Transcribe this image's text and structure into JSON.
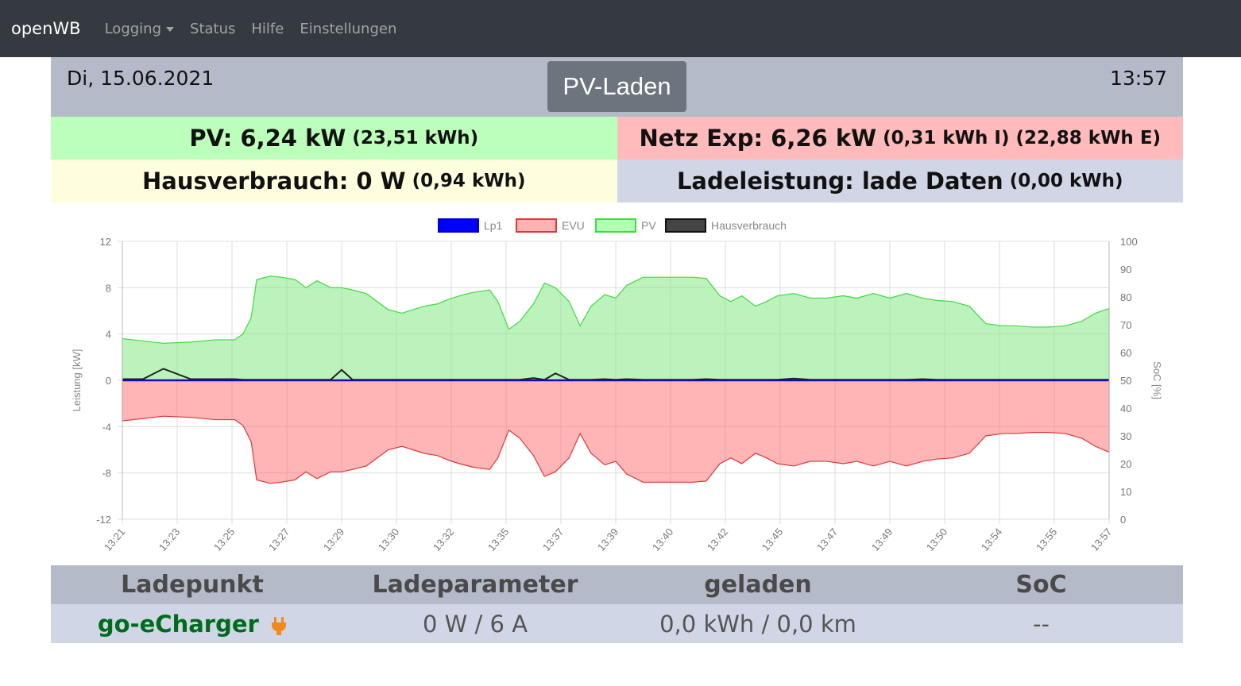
{
  "nav": {
    "brand": "openWB",
    "items": [
      "Logging",
      "Status",
      "Hilfe",
      "Einstellungen"
    ]
  },
  "header": {
    "date": "Di, 15.06.2021",
    "mode": "PV-Laden",
    "time": "13:57"
  },
  "summary": {
    "pv": {
      "label": "PV: 6,24 kW",
      "sub": "(23,51 kWh)",
      "color": "#bbffbb"
    },
    "netz": {
      "label": "Netz Exp: 6,26 kW",
      "sub": "(0,31 kWh I) (22,88 kWh E)",
      "color": "#ffbbbb"
    },
    "haus": {
      "label": "Hausverbrauch: 0 W",
      "sub": "(0,94 kWh)",
      "color": "#fefedf"
    },
    "lade": {
      "label": "Ladeleistung: lade Daten",
      "sub": "(0,00 kWh)",
      "color": "#d0d6e6"
    }
  },
  "chart_data": {
    "type": "area",
    "legend": [
      "Lp1",
      "EVU",
      "PV",
      "Hausverbrauch"
    ],
    "legend_position": "top",
    "ylabel": "Leistung [kW]",
    "y2label": "SoC [%]",
    "ylim": [
      -12,
      12
    ],
    "yticks": [
      12,
      8,
      4,
      0,
      -4,
      -8,
      -12
    ],
    "y2lim": [
      0,
      100
    ],
    "y2ticks": [
      100,
      90,
      80,
      70,
      60,
      50,
      40,
      30,
      20,
      10,
      0
    ],
    "xticks": [
      "13:21",
      "13:23",
      "13:25",
      "13:27",
      "13:29",
      "13:30",
      "13:32",
      "13:35",
      "13:37",
      "13:39",
      "13:40",
      "13:42",
      "13:45",
      "13:47",
      "13:49",
      "13:50",
      "13:54",
      "13:55",
      "13:57"
    ],
    "xlim_minutes": [
      0,
      36
    ],
    "t": [
      0,
      0.75,
      1.5,
      2.5,
      3.4,
      4.1,
      4.4,
      4.7,
      4.9,
      5.4,
      5.8,
      6.3,
      6.7,
      7.1,
      7.6,
      8.0,
      8.4,
      8.9,
      9.3,
      9.7,
      10.2,
      10.6,
      11.0,
      11.5,
      11.9,
      12.3,
      12.8,
      13.4,
      13.7,
      14.1,
      14.5,
      15.0,
      15.4,
      15.8,
      16.3,
      16.7,
      17.1,
      17.6,
      18.0,
      18.4,
      19.0,
      19.9,
      20.8,
      21.3,
      21.8,
      22.2,
      22.6,
      23.1,
      23.5,
      23.9,
      24.5,
      25.1,
      25.7,
      26.3,
      26.8,
      27.4,
      28.0,
      28.6,
      29.2,
      29.7,
      30.3,
      30.9,
      31.5,
      32.1,
      32.6,
      33.2,
      33.8,
      34.4,
      35.0,
      35.5,
      36
    ],
    "pv": [
      3.6,
      3.4,
      3.2,
      3.3,
      3.5,
      3.5,
      4.0,
      5.4,
      8.7,
      9.0,
      8.9,
      8.7,
      8.0,
      8.6,
      8.0,
      8.0,
      7.8,
      7.5,
      6.8,
      6.1,
      5.8,
      6.1,
      6.4,
      6.6,
      7.0,
      7.3,
      7.6,
      7.8,
      6.8,
      4.4,
      5.1,
      6.6,
      8.4,
      8.0,
      6.8,
      4.7,
      6.4,
      7.4,
      7.1,
      8.2,
      8.9,
      8.9,
      8.9,
      8.8,
      7.3,
      6.8,
      7.3,
      6.4,
      6.8,
      7.3,
      7.5,
      7.1,
      7.1,
      7.3,
      7.1,
      7.5,
      7.1,
      7.5,
      7.1,
      6.9,
      6.8,
      6.4,
      4.9,
      4.7,
      4.7,
      4.6,
      4.6,
      4.7,
      5.1,
      5.8,
      6.2
    ],
    "evu": [
      -3.5,
      -3.3,
      -3.1,
      -3.2,
      -3.4,
      -3.4,
      -3.9,
      -5.3,
      -8.6,
      -8.9,
      -8.8,
      -8.6,
      -7.9,
      -8.5,
      -7.9,
      -7.9,
      -7.7,
      -7.4,
      -6.7,
      -6.0,
      -5.7,
      -6.0,
      -6.3,
      -6.5,
      -6.9,
      -7.2,
      -7.5,
      -7.7,
      -6.7,
      -4.3,
      -5.0,
      -6.5,
      -8.3,
      -7.9,
      -6.7,
      -4.6,
      -6.3,
      -7.3,
      -7.0,
      -8.1,
      -8.8,
      -8.8,
      -8.8,
      -8.7,
      -7.2,
      -6.7,
      -7.2,
      -6.3,
      -6.7,
      -7.2,
      -7.4,
      -7.0,
      -7.0,
      -7.2,
      -7.0,
      -7.4,
      -7.0,
      -7.4,
      -7.0,
      -6.8,
      -6.7,
      -6.3,
      -4.8,
      -4.6,
      -4.6,
      -4.5,
      -4.5,
      -4.6,
      -5.0,
      -5.7,
      -6.2
    ],
    "haus": [
      0.1,
      0.1,
      1.0,
      0.1,
      0.1,
      0.1,
      0.05,
      0.05,
      0.05,
      0.05,
      0.05,
      0.05,
      0.05,
      0.05,
      0.05,
      0.9,
      0.05,
      0.05,
      0.05,
      0.05,
      0.05,
      0.05,
      0.05,
      0.05,
      0.05,
      0.05,
      0.05,
      0.05,
      0.05,
      0.05,
      0.05,
      0.2,
      0.05,
      0.6,
      0.05,
      0.05,
      0.05,
      0.1,
      0.05,
      0.1,
      0.05,
      0.05,
      0.05,
      0.1,
      0.05,
      0.05,
      0.05,
      0.05,
      0.05,
      0.05,
      0.15,
      0.05,
      0.05,
      0.05,
      0.05,
      0.05,
      0.05,
      0.05,
      0.1,
      0.05,
      0.05,
      0.05,
      0.05,
      0.05,
      0.05,
      0.05,
      0.05,
      0.05,
      0.05,
      0.05,
      0.05
    ],
    "lp1": 0
  },
  "colors": {
    "lp1": "#0000ff",
    "evu": "#ff6b6b",
    "pv": "#7ae67a",
    "haus": "#222222"
  },
  "table": {
    "headers": [
      "Ladepunkt",
      "Ladeparameter",
      "geladen",
      "SoC"
    ],
    "rows": [
      {
        "name": "go-eCharger",
        "params": "0 W / 6 A",
        "charged": "0,0 kWh / 0,0 km",
        "soc": "--"
      }
    ]
  }
}
